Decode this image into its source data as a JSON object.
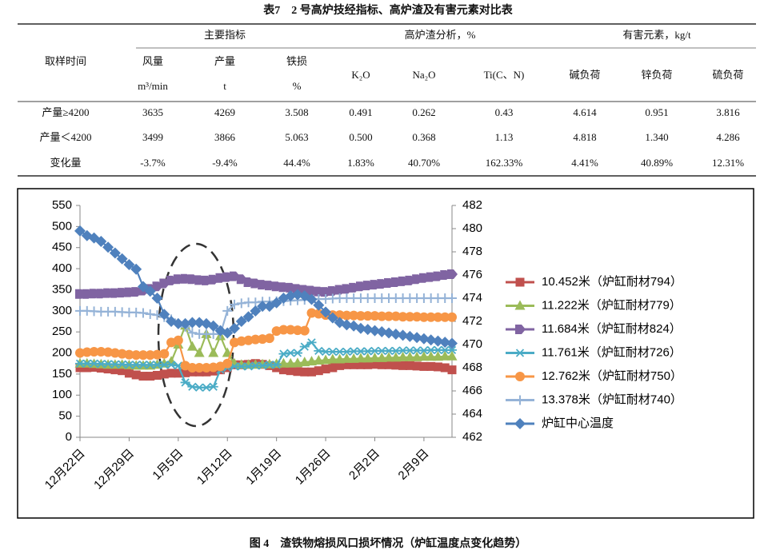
{
  "table": {
    "title": "表7　2 号高炉技经指标、高炉渣及有害元素对比表",
    "groups": [
      "主要指标",
      "高炉渣分析，%",
      "有害元素，kg/t"
    ],
    "columns": [
      {
        "name": "取样时间"
      },
      {
        "name": "风量",
        "unit": "m³/min"
      },
      {
        "name": "产量",
        "unit": "t"
      },
      {
        "name": "铁损",
        "unit": "%"
      },
      {
        "name": "K₂O"
      },
      {
        "name": "Na₂O"
      },
      {
        "name": "Ti(C、N)"
      },
      {
        "name": "碱负荷"
      },
      {
        "name": "锌负荷"
      },
      {
        "name": "硫负荷"
      }
    ],
    "rows": [
      [
        "产量≥4200",
        "3635",
        "4269",
        "3.508",
        "0.491",
        "0.262",
        "0.43",
        "4.614",
        "0.951",
        "3.816"
      ],
      [
        "产量＜4200",
        "3499",
        "3866",
        "5.063",
        "0.500",
        "0.368",
        "1.13",
        "4.818",
        "1.340",
        "4.286"
      ],
      [
        "变化量",
        "-3.7%",
        "-9.4%",
        "44.4%",
        "1.83%",
        "40.70%",
        "162.33%",
        "4.41%",
        "40.89%",
        "12.31%"
      ]
    ]
  },
  "chart_data": {
    "type": "line",
    "categories": [
      "12月22日",
      null,
      null,
      null,
      null,
      null,
      null,
      "12月29日",
      null,
      null,
      null,
      null,
      null,
      null,
      "1月5日",
      null,
      null,
      null,
      null,
      null,
      null,
      "1月12日",
      null,
      null,
      null,
      null,
      null,
      null,
      "1月19日",
      null,
      null,
      null,
      null,
      null,
      null,
      "1月26日",
      null,
      null,
      null,
      null,
      null,
      null,
      "2月2日",
      null,
      null,
      null,
      null,
      null,
      null,
      "2月9日",
      null,
      null,
      null,
      null
    ],
    "ylim": [
      0,
      550
    ],
    "yticks": [
      0,
      50,
      100,
      150,
      200,
      250,
      300,
      350,
      400,
      450,
      500,
      550
    ],
    "y2lim": [
      462,
      482
    ],
    "y2ticks": [
      462,
      464,
      466,
      468,
      470,
      472,
      474,
      476,
      478,
      480,
      482
    ],
    "legend": "right",
    "series": [
      {
        "name": "10.452米（炉缸耐材794）",
        "color": "#c0504d",
        "marker": "square",
        "values": [
          165,
          165,
          166,
          164,
          162,
          160,
          158,
          152,
          148,
          145,
          145,
          147,
          150,
          152,
          152,
          153,
          155,
          155,
          155,
          157,
          160,
          165,
          172,
          172,
          173,
          175,
          173,
          170,
          165,
          160,
          158,
          156,
          155,
          155,
          158,
          162,
          165,
          170,
          172,
          172,
          172,
          172,
          173,
          172,
          172,
          171,
          170,
          170,
          169,
          168,
          168,
          167,
          165,
          160
        ]
      },
      {
        "name": "11.222米（炉缸耐材779）",
        "color": "#9bbb59",
        "marker": "triangle",
        "values": [
          175,
          175,
          174,
          173,
          172,
          172,
          172,
          171,
          170,
          170,
          170,
          172,
          175,
          180,
          220,
          265,
          215,
          200,
          245,
          200,
          240,
          200,
          175,
          172,
          172,
          172,
          173,
          173,
          174,
          175,
          175,
          176,
          178,
          180,
          182,
          183,
          185,
          185,
          186,
          186,
          187,
          187,
          188,
          188,
          189,
          189,
          190,
          190,
          190,
          191,
          191,
          191,
          192,
          192
        ]
      },
      {
        "name": "11.684米（炉缸耐材824）",
        "color": "#8064a2",
        "marker": "arrow",
        "values": [
          340,
          340,
          341,
          341,
          342,
          342,
          343,
          344,
          345,
          348,
          352,
          358,
          365,
          372,
          375,
          376,
          375,
          373,
          372,
          374,
          378,
          380,
          382,
          375,
          368,
          365,
          362,
          360,
          358,
          356,
          355,
          352,
          350,
          348,
          346,
          345,
          347,
          350,
          352,
          355,
          358,
          360,
          362,
          364,
          366,
          368,
          370,
          372,
          375,
          378,
          380,
          382,
          385,
          387
        ]
      },
      {
        "name": "11.761米（炉缸耐材726）",
        "color": "#4bacc6",
        "marker": "asterisk",
        "values": [
          175,
          175,
          175,
          174,
          174,
          173,
          173,
          172,
          172,
          172,
          172,
          172,
          172,
          172,
          170,
          130,
          120,
          118,
          118,
          120,
          160,
          165,
          168,
          168,
          168,
          170,
          170,
          172,
          172,
          198,
          200,
          200,
          215,
          225,
          205,
          203,
          203,
          203,
          203,
          204,
          204,
          204,
          205,
          205,
          205,
          205,
          206,
          206,
          206,
          206,
          207,
          207,
          207,
          207
        ]
      },
      {
        "name": "12.762米（炉缸耐材750）",
        "color": "#f79646",
        "marker": "circle",
        "values": [
          200,
          202,
          203,
          203,
          202,
          200,
          198,
          196,
          195,
          195,
          195,
          196,
          198,
          225,
          230,
          170,
          165,
          165,
          165,
          166,
          168,
          175,
          225,
          228,
          230,
          232,
          233,
          235,
          252,
          255,
          255,
          254,
          253,
          295,
          293,
          290,
          290,
          290,
          289,
          289,
          288,
          288,
          288,
          287,
          287,
          287,
          286,
          286,
          286,
          285,
          285,
          285,
          285,
          285
        ]
      },
      {
        "name": "13.378米（炉缸耐材740）",
        "color": "#95b3d7",
        "marker": "plus",
        "values": [
          300,
          300,
          299,
          298,
          298,
          298,
          297,
          296,
          296,
          295,
          292,
          290,
          285,
          280,
          270,
          262,
          248,
          245,
          245,
          245,
          245,
          300,
          315,
          318,
          320,
          320,
          322,
          322,
          323,
          323,
          324,
          325,
          326,
          327,
          328,
          328,
          329,
          330,
          330,
          330,
          330,
          330,
          330,
          330,
          330,
          330,
          330,
          330,
          330,
          330,
          330,
          330,
          330,
          330
        ]
      },
      {
        "name": "炉缸中心温度",
        "color": "#4f81bd",
        "marker": "diamond",
        "axis": "y2",
        "values": [
          479.8,
          479.4,
          479.2,
          478.9,
          478.4,
          477.9,
          477.4,
          476.9,
          476.5,
          475.0,
          474.6,
          474.0,
          472.6,
          472.0,
          471.8,
          471.8,
          471.9,
          471.9,
          471.8,
          471.6,
          471.2,
          471.0,
          471.4,
          472.0,
          472.4,
          472.9,
          473.3,
          473.3,
          473.6,
          474.0,
          474.2,
          474.3,
          474.2,
          473.9,
          473.4,
          472.8,
          472.3,
          471.9,
          471.7,
          471.6,
          471.4,
          471.3,
          471.2,
          471.1,
          471.0,
          470.9,
          470.8,
          470.7,
          470.6,
          470.5,
          470.4,
          470.3,
          470.2,
          470.1
        ]
      }
    ]
  },
  "figure_caption": "图 4　渣铁物熔损风口损坏情况（炉缸温度点变化趋势）"
}
